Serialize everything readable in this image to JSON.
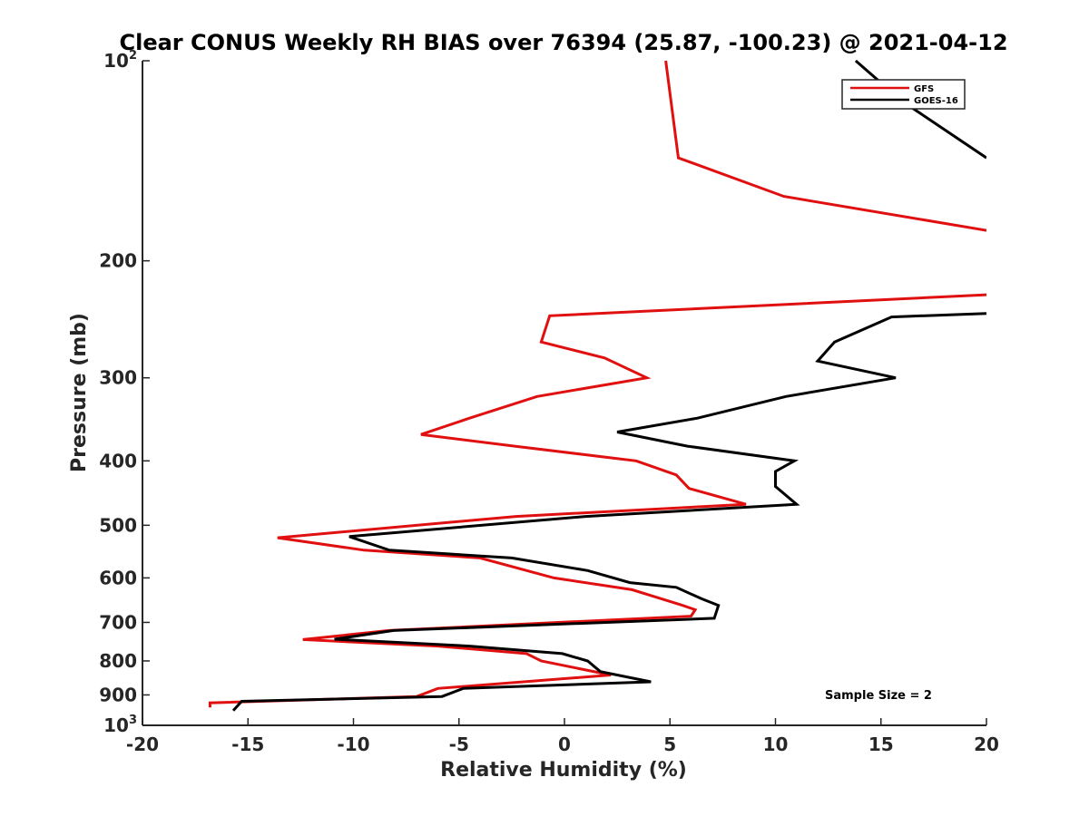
{
  "chart_data": {
    "type": "line",
    "title": "Clear CONUS Weekly RH BIAS over 76394 (25.87, -100.23) @ 2021-04-12",
    "xlabel": "Relative Humidity (%)",
    "ylabel": "Pressure (mb)",
    "xlim": [
      -20,
      20
    ],
    "ylim": [
      100,
      1000
    ],
    "y_scale": "log",
    "y_reversed": true,
    "x_ticks": [
      -20,
      -15,
      -10,
      -5,
      0,
      5,
      10,
      15,
      20
    ],
    "x_tick_labels": [
      "-20",
      "-15",
      "-10",
      "-5",
      "0",
      "5",
      "10",
      "15",
      "20"
    ],
    "y_ticks": [
      {
        "value": 100,
        "base": "10",
        "exp": "2"
      },
      {
        "value": 200,
        "base": "200",
        "exp": ""
      },
      {
        "value": 300,
        "base": "300",
        "exp": ""
      },
      {
        "value": 400,
        "base": "400",
        "exp": ""
      },
      {
        "value": 500,
        "base": "500",
        "exp": ""
      },
      {
        "value": 600,
        "base": "600",
        "exp": ""
      },
      {
        "value": 700,
        "base": "700",
        "exp": ""
      },
      {
        "value": 800,
        "base": "800",
        "exp": ""
      },
      {
        "value": 900,
        "base": "900",
        "exp": ""
      },
      {
        "value": 1000,
        "base": "10",
        "exp": "3"
      }
    ],
    "grid": false,
    "legend_position": "top-right",
    "annotation": "Sample Size = 2",
    "series": [
      {
        "name": "GFS",
        "color": "#e01010",
        "points": [
          [
            4.8,
            100
          ],
          [
            5.4,
            140
          ],
          [
            10.4,
            160
          ],
          [
            20.0,
            180
          ],
          [
            null,
            null
          ],
          [
            20.0,
            225
          ],
          [
            -0.7,
            242
          ],
          [
            -1.1,
            265
          ],
          [
            1.9,
            280
          ],
          [
            3.9,
            300
          ],
          [
            -1.3,
            320
          ],
          [
            -4.5,
            345
          ],
          [
            -6.8,
            365
          ],
          [
            -2.4,
            380
          ],
          [
            3.4,
            400
          ],
          [
            5.3,
            420
          ],
          [
            5.9,
            440
          ],
          [
            8.6,
            465
          ],
          [
            -2.3,
            485
          ],
          [
            -13.6,
            522
          ],
          [
            -9.5,
            545
          ],
          [
            -4.0,
            560
          ],
          [
            -0.5,
            600
          ],
          [
            3.2,
            625
          ],
          [
            5.6,
            660
          ],
          [
            6.2,
            670
          ],
          [
            6.0,
            685
          ],
          [
            -8.3,
            720
          ],
          [
            -12.4,
            743
          ],
          [
            -6.0,
            760
          ],
          [
            -1.8,
            780
          ],
          [
            -1.1,
            800
          ],
          [
            2.2,
            840
          ],
          [
            -6.0,
            880
          ],
          [
            -7.0,
            905
          ],
          [
            -16.8,
            925
          ],
          [
            -16.8,
            940
          ]
        ]
      },
      {
        "name": "GOES-16",
        "color": "#000000",
        "points": [
          [
            13.8,
            100
          ],
          [
            16.0,
            115
          ],
          [
            20.0,
            140
          ],
          [
            null,
            null
          ],
          [
            20.0,
            240
          ],
          [
            15.5,
            243
          ],
          [
            12.8,
            265
          ],
          [
            12.0,
            283
          ],
          [
            15.7,
            300
          ],
          [
            10.5,
            320
          ],
          [
            6.3,
            345
          ],
          [
            2.5,
            362
          ],
          [
            5.8,
            380
          ],
          [
            10.9,
            400
          ],
          [
            10.0,
            415
          ],
          [
            10.0,
            437
          ],
          [
            11.0,
            465
          ],
          [
            1.0,
            485
          ],
          [
            -10.2,
            520
          ],
          [
            -8.3,
            545
          ],
          [
            -2.5,
            560
          ],
          [
            1.1,
            585
          ],
          [
            3.1,
            610
          ],
          [
            5.3,
            620
          ],
          [
            6.5,
            645
          ],
          [
            7.3,
            660
          ],
          [
            7.1,
            690
          ],
          [
            -8.1,
            720
          ],
          [
            -10.9,
            742
          ],
          [
            -4.5,
            760
          ],
          [
            -0.1,
            780
          ],
          [
            1.1,
            800
          ],
          [
            1.7,
            830
          ],
          [
            4.1,
            860
          ],
          [
            -4.8,
            880
          ],
          [
            -5.8,
            905
          ],
          [
            -15.3,
            920
          ],
          [
            -15.7,
            950
          ]
        ]
      }
    ]
  }
}
